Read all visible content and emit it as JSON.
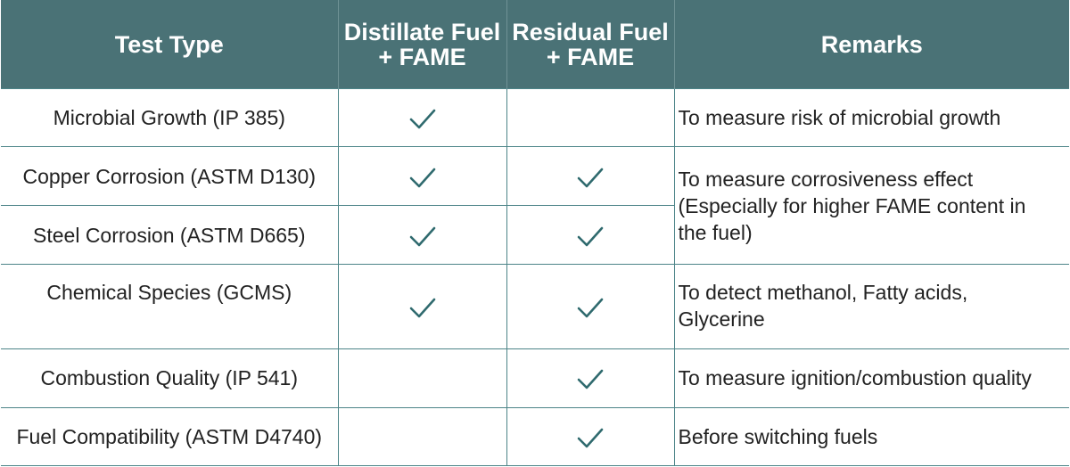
{
  "header": {
    "test_type": "Test Type",
    "distillate_line1": "Distillate Fuel",
    "distillate_line2": "+ FAME",
    "residual_line1": "Residual Fuel",
    "residual_line2": "+ FAME",
    "remarks": "Remarks"
  },
  "rows": [
    {
      "test": "Microbial Growth (IP 385)",
      "distillate": true,
      "residual": false,
      "remark_lines": [
        "To measure risk of microbial growth"
      ]
    },
    {
      "test": "Copper Corrosion (ASTM D130)",
      "distillate": true,
      "residual": true,
      "remark_lines": [
        "To measure corrosiveness effect",
        "(Especially for higher FAME content in",
        "the fuel)"
      ]
    },
    {
      "test": "Steel Corrosion (ASTM D665)",
      "distillate": true,
      "residual": true
    },
    {
      "test": "Chemical Species (GCMS)",
      "distillate": true,
      "residual": true,
      "remark_lines": [
        "To detect methanol, Fatty acids,",
        "Glycerine"
      ]
    },
    {
      "test": "Combustion Quality (IP 541)",
      "distillate": false,
      "residual": true,
      "remark_lines": [
        "To measure ignition/combustion quality"
      ]
    },
    {
      "test": "Fuel Compatibility (ASTM D4740)",
      "distillate": false,
      "residual": true,
      "remark_lines": [
        "Before switching fuels"
      ]
    }
  ],
  "colors": {
    "header_bg": "#4a7276",
    "border": "#4c8488",
    "check": "#2f6a6e"
  },
  "icons": {
    "check": "check-icon"
  }
}
